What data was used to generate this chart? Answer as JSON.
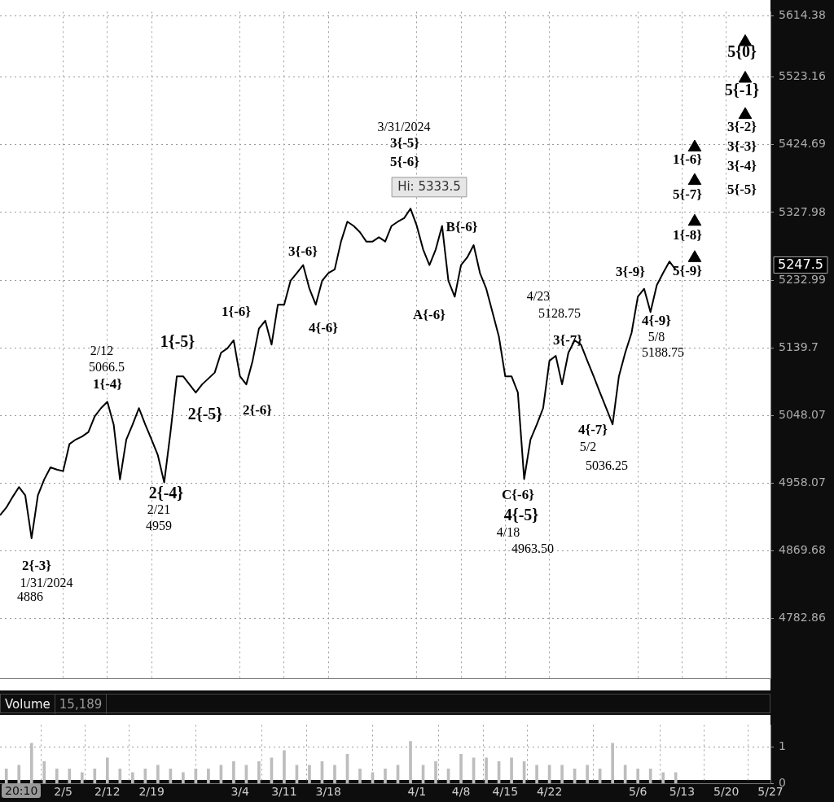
{
  "chart_data": [
    {
      "type": "line",
      "log": "y",
      "grid": true,
      "legend": false,
      "tick_labels": "y",
      "line_style": "solid",
      "xlim": [
        "--01-26",
        "--05-27"
      ],
      "xticks": [
        {
          "value": "--02-05",
          "label": null
        },
        {
          "value": "--02-12",
          "label": null
        },
        {
          "value": "--02-19",
          "label": null
        },
        {
          "value": "--03-04",
          "label": null
        },
        {
          "value": "--03-11",
          "label": null
        },
        {
          "value": "--03-18",
          "label": null
        },
        {
          "value": "--04-01",
          "label": null
        },
        {
          "value": "--04-08",
          "label": null
        },
        {
          "value": "--04-15",
          "label": null
        },
        {
          "value": "--04-22",
          "label": null
        },
        {
          "value": "--05-06",
          "label": null
        },
        {
          "value": "--05-13",
          "label": null
        },
        {
          "value": "--05-20",
          "label": null
        },
        {
          "value": "--05-27",
          "label": null
        }
      ],
      "ylim": [
        4707,
        5620
      ],
      "yticks": [
        4782.86,
        4869.68,
        4958.07,
        5048.07,
        5139.7,
        5232.99,
        5327.98,
        5424.69,
        5523.16,
        5614.38
      ],
      "series": [
        {
          "color": "#000000",
          "x": [
            "--01-26",
            "--01-27",
            "--01-28",
            "--01-29",
            "--01-30",
            "--01-31",
            "--02-01",
            "--02-02",
            "--02-03",
            "--02-04",
            "--02-05",
            "--02-06",
            "--02-07",
            "--02-08",
            "--02-09",
            "--02-10",
            "--02-11",
            "--02-12",
            "--02-13",
            "--02-14",
            "--02-15",
            "--02-16",
            "--02-17",
            "--02-18",
            "--02-19",
            "--02-20",
            "--02-21",
            "--02-22",
            "--02-23",
            "--02-24",
            "--02-25",
            "--02-26",
            "--02-27",
            "--02-28",
            "--02-29",
            "--03-01",
            "--03-02",
            "--03-03",
            "--03-04",
            "--03-05",
            "--03-06",
            "--03-07",
            "--03-08",
            "--03-09",
            "--03-10",
            "--03-11",
            "--03-12",
            "--03-13",
            "--03-14",
            "--03-15",
            "--03-16",
            "--03-17",
            "--03-18",
            "--03-19",
            "--03-20",
            "--03-21",
            "--03-22",
            "--03-23",
            "--03-24",
            "--03-25",
            "--03-26",
            "--03-27",
            "--03-28",
            "--03-29",
            "--03-30",
            "--03-31",
            "--04-01",
            "--04-02",
            "--04-03",
            "--04-04",
            "--04-05",
            "--04-06",
            "--04-07",
            "--04-08",
            "--04-09",
            "--04-10",
            "--04-11",
            "--04-12",
            "--04-13",
            "--04-14",
            "--04-15",
            "--04-16",
            "--04-17",
            "--04-18",
            "--04-19",
            "--04-20",
            "--04-21",
            "--04-22",
            "--04-23",
            "--04-24",
            "--04-25",
            "--04-26",
            "--04-27",
            "--04-28",
            "--04-29",
            "--04-30",
            "--05-01",
            "--05-02",
            "--05-03",
            "--05-04",
            "--05-05",
            "--05-06",
            "--05-07",
            "--05-08",
            "--05-09",
            "--05-10",
            "--05-11",
            "--05-12"
          ],
          "values": [
            4916,
            4926,
            4940,
            4953,
            4942,
            4886,
            4942,
            4963,
            4979,
            4976,
            4974,
            5010,
            5016,
            5020,
            5026,
            5047,
            5058,
            5066.5,
            5036,
            4963,
            5016,
            5036,
            5058,
            5036,
            5016,
            4995,
            4959,
            5026,
            5101,
            5101,
            5090,
            5079,
            5090,
            5098,
            5106,
            5133,
            5139,
            5150,
            5101,
            5090,
            5122,
            5166,
            5177,
            5144,
            5199,
            5199,
            5232,
            5243,
            5254,
            5221,
            5199,
            5232,
            5243,
            5248,
            5287,
            5315,
            5309,
            5300,
            5287,
            5287,
            5293,
            5287,
            5309,
            5315,
            5320,
            5333.5,
            5309,
            5276,
            5254,
            5276,
            5309,
            5232,
            5210,
            5254,
            5265,
            5282,
            5243,
            5221,
            5188,
            5155,
            5101,
            5101,
            5079,
            4963.5,
            5016,
            5036,
            5058,
            5122,
            5128.75,
            5090,
            5133,
            5150,
            5144,
            5122,
            5101,
            5079,
            5058,
            5036.25,
            5101,
            5133,
            5160,
            5210,
            5221,
            5188.75,
            5226,
            5243,
            5259,
            5247.5
          ]
        },
        {
          "type": "scatter",
          "marker": "triangle",
          "color": "#000000",
          "x": [
            "--05-15",
            "--05-15",
            "--05-15",
            "--05-15",
            "--05-23",
            "--05-23",
            "--05-23"
          ],
          "values": [
            5421,
            5373,
            5315,
            5264,
            5575,
            5521,
            5468
          ]
        }
      ],
      "annotations": [
        "2{-3}",
        "1/31/2024",
        "4886",
        "2/12",
        "5066.5",
        "1{-4}",
        "1{-5}",
        "2{-5}",
        "1{-6}",
        "2{-6}",
        "2{-4}",
        "2/21",
        "4959",
        "3{-6}",
        "4{-6}",
        "3/31/2024",
        "3{-5}",
        "5{-6}",
        "Hi: 5333.5",
        "B{-6}",
        "A{-6}",
        "4/23",
        "5128.75",
        "3{-7}",
        "4{-7}",
        "5/2",
        "5036.25",
        "C{-6}",
        "4{-5}",
        "4/18",
        "4963.50",
        "3{-9}",
        "4{-9}",
        "5/8",
        "5188.75",
        "1{-6}",
        "5{-7}",
        "1{-8}",
        "5{-9}",
        "5{0}",
        "5{-1}",
        "3{-2}",
        "3{-3}",
        "3{-4}",
        "5{-5}",
        "5247.5"
      ]
    },
    {
      "type": "bar",
      "title": "Volume",
      "grid": true,
      "legend": false,
      "xlim": [
        "--01-26",
        "--05-27"
      ],
      "xticks": [
        {
          "value": "--02-05",
          "label": "2/5"
        },
        {
          "value": "--02-12",
          "label": "2/12"
        },
        {
          "value": "--02-19",
          "label": "2/19"
        },
        {
          "value": "--03-04",
          "label": "3/4"
        },
        {
          "value": "--03-11",
          "label": "3/11"
        },
        {
          "value": "--03-18",
          "label": "3/18"
        },
        {
          "value": "--04-01",
          "label": "4/1"
        },
        {
          "value": "--04-08",
          "label": "4/8"
        },
        {
          "value": "--04-15",
          "label": "4/15"
        },
        {
          "value": "--04-22",
          "label": "4/22"
        },
        {
          "value": "--05-06",
          "label": "5/6"
        },
        {
          "value": "--05-13",
          "label": "5/13"
        },
        {
          "value": "--05-20",
          "label": "5/20"
        },
        {
          "value": "--05-27",
          "label": "5/27"
        }
      ],
      "ylim": [
        0,
        1.6
      ],
      "yticks": [
        0,
        1
      ],
      "series": [
        {
          "color": "#bdbdbd",
          "x": [
            "--01-27",
            "--01-29",
            "--01-31",
            "--02-02",
            "--02-04",
            "--02-06",
            "--02-08",
            "--02-10",
            "--02-12",
            "--02-14",
            "--02-16",
            "--02-18",
            "--02-20",
            "--02-22",
            "--02-24",
            "--02-26",
            "--02-28",
            "--03-01",
            "--03-03",
            "--03-05",
            "--03-07",
            "--03-09",
            "--03-11",
            "--03-13",
            "--03-15",
            "--03-17",
            "--03-19",
            "--03-21",
            "--03-23",
            "--03-25",
            "--03-27",
            "--03-29",
            "--03-31",
            "--04-02",
            "--04-04",
            "--04-06",
            "--04-08",
            "--04-10",
            "--04-12",
            "--04-14",
            "--04-16",
            "--04-18",
            "--04-20",
            "--04-22",
            "--04-24",
            "--04-26",
            "--04-28",
            "--04-30",
            "--05-02",
            "--05-04",
            "--05-06",
            "--05-08",
            "--05-10",
            "--05-12"
          ],
          "values": [
            0.4,
            0.5,
            1.1,
            0.6,
            0.4,
            0.4,
            0.3,
            0.4,
            0.7,
            0.4,
            0.3,
            0.4,
            0.5,
            0.4,
            0.3,
            0.4,
            0.4,
            0.5,
            0.6,
            0.5,
            0.6,
            0.7,
            0.9,
            0.5,
            0.5,
            0.6,
            0.5,
            0.8,
            0.4,
            0.3,
            0.4,
            0.5,
            1.15,
            0.5,
            0.6,
            0.4,
            0.8,
            0.7,
            0.7,
            0.6,
            0.7,
            0.6,
            0.5,
            0.5,
            0.5,
            0.4,
            0.5,
            0.4,
            1.1,
            0.5,
            0.4,
            0.4,
            0.3,
            0.3
          ]
        }
      ],
      "annotations": [
        "15,189",
        "20:10"
      ]
    }
  ]
}
